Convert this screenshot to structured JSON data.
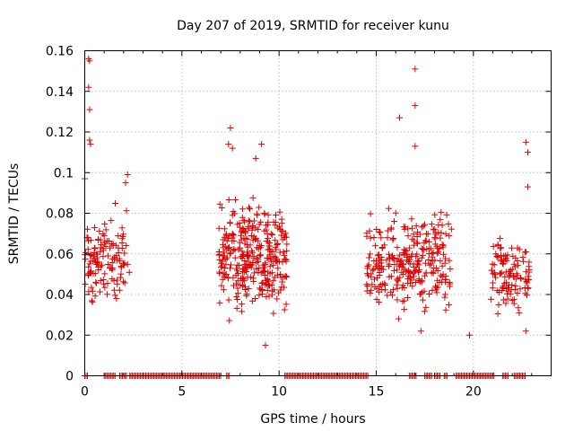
{
  "chart_data": {
    "type": "scatter",
    "title": "Day 207 of 2019, SRMTID for receiver kunu",
    "xlabel": "GPS time / hours",
    "ylabel": "SRMTID / TECUs",
    "xlim": [
      0,
      24
    ],
    "ylim": [
      0,
      0.16
    ],
    "xticks": [
      0,
      5,
      10,
      15,
      20
    ],
    "yticks": [
      0,
      0.02,
      0.04,
      0.06,
      0.08,
      0.1,
      0.12,
      0.14,
      0.16
    ],
    "xtick_labels": [
      "0",
      "5",
      "10",
      "15",
      "20"
    ],
    "ytick_labels": [
      "0",
      "0.02",
      "0.04",
      "0.06",
      "0.08",
      "0.1",
      "0.12",
      "0.14",
      "0.16"
    ],
    "grid": true,
    "marker": "+",
    "color": "#e00000",
    "clusters": [
      {
        "x_range": [
          0.0,
          2.3
        ],
        "y_center": 0.058,
        "y_spread": 0.022,
        "count": 130
      },
      {
        "x_range": [
          6.9,
          10.4
        ],
        "y_center": 0.058,
        "y_spread": 0.024,
        "count": 330
      },
      {
        "x_range": [
          14.5,
          18.9
        ],
        "y_center": 0.056,
        "y_spread": 0.022,
        "count": 300
      },
      {
        "x_range": [
          20.9,
          22.9
        ],
        "y_center": 0.05,
        "y_spread": 0.016,
        "count": 110
      }
    ],
    "highlight_points": [
      {
        "x": 0.2,
        "y": 0.156
      },
      {
        "x": 0.25,
        "y": 0.155
      },
      {
        "x": 0.2,
        "y": 0.142
      },
      {
        "x": 0.25,
        "y": 0.131
      },
      {
        "x": 0.25,
        "y": 0.116
      },
      {
        "x": 0.3,
        "y": 0.114
      },
      {
        "x": 0.0,
        "y": 0.097
      },
      {
        "x": 2.2,
        "y": 0.099
      },
      {
        "x": 2.1,
        "y": 0.095
      },
      {
        "x": 7.5,
        "y": 0.122
      },
      {
        "x": 7.4,
        "y": 0.114
      },
      {
        "x": 7.6,
        "y": 0.112
      },
      {
        "x": 9.1,
        "y": 0.114
      },
      {
        "x": 8.8,
        "y": 0.107
      },
      {
        "x": 9.3,
        "y": 0.015
      },
      {
        "x": 17.0,
        "y": 0.151
      },
      {
        "x": 17.0,
        "y": 0.133
      },
      {
        "x": 16.2,
        "y": 0.127
      },
      {
        "x": 17.0,
        "y": 0.113
      },
      {
        "x": 17.3,
        "y": 0.022
      },
      {
        "x": 19.8,
        "y": 0.02
      },
      {
        "x": 22.7,
        "y": 0.115
      },
      {
        "x": 22.8,
        "y": 0.11
      },
      {
        "x": 22.8,
        "y": 0.093
      },
      {
        "x": 22.7,
        "y": 0.022
      }
    ],
    "zero_segments": [
      [
        0.0,
        0.2
      ],
      [
        1.0,
        1.6
      ],
      [
        1.8,
        2.2
      ],
      [
        2.3,
        7.0
      ],
      [
        7.3,
        7.5
      ],
      [
        10.3,
        14.6
      ],
      [
        16.7,
        17.1
      ],
      [
        17.5,
        17.9
      ],
      [
        18.0,
        18.3
      ],
      [
        18.5,
        18.7
      ],
      [
        19.1,
        21.1
      ],
      [
        21.5,
        21.8
      ],
      [
        22.1,
        22.7
      ]
    ]
  }
}
